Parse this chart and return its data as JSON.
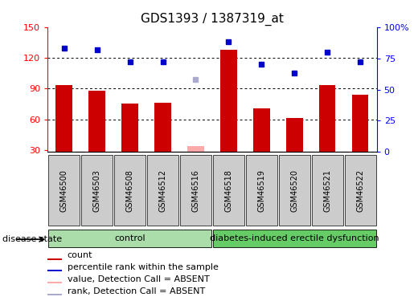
{
  "title": "GDS1393 / 1387319_at",
  "samples": [
    "GSM46500",
    "GSM46503",
    "GSM46508",
    "GSM46512",
    "GSM46516",
    "GSM46518",
    "GSM46519",
    "GSM46520",
    "GSM46521",
    "GSM46522"
  ],
  "counts": [
    93,
    88,
    75,
    76,
    null,
    128,
    71,
    61,
    93,
    84
  ],
  "percentile_ranks_left": [
    83,
    82,
    72,
    72,
    null,
    88,
    70,
    63,
    80,
    72
  ],
  "absent_value": [
    null,
    null,
    null,
    null,
    34,
    null,
    null,
    null,
    null,
    null
  ],
  "absent_rank_left": [
    null,
    null,
    null,
    null,
    58,
    null,
    null,
    null,
    null,
    null
  ],
  "groups": {
    "control": [
      0,
      1,
      2,
      3,
      4
    ],
    "diabetes": [
      5,
      6,
      7,
      8,
      9
    ]
  },
  "group_labels": [
    "control",
    "diabetes-induced erectile dysfunction"
  ],
  "ylim_left": [
    28,
    150
  ],
  "ylim_right": [
    0,
    100
  ],
  "yticks_left": [
    30,
    60,
    90,
    120,
    150
  ],
  "yticks_right": [
    0,
    25,
    50,
    75,
    100
  ],
  "bar_color_red": "#cc0000",
  "bar_color_pink": "#ffaaaa",
  "dot_color_blue": "#0000cc",
  "dot_color_lightblue": "#aaaacc",
  "control_bg": "#aaddaa",
  "diabetes_bg": "#66cc66",
  "sample_bg": "#cccccc",
  "title_fontsize": 11,
  "tick_label_fontsize": 8,
  "legend_fontsize": 8,
  "group_label_fontsize": 8,
  "disease_state_fontsize": 8
}
